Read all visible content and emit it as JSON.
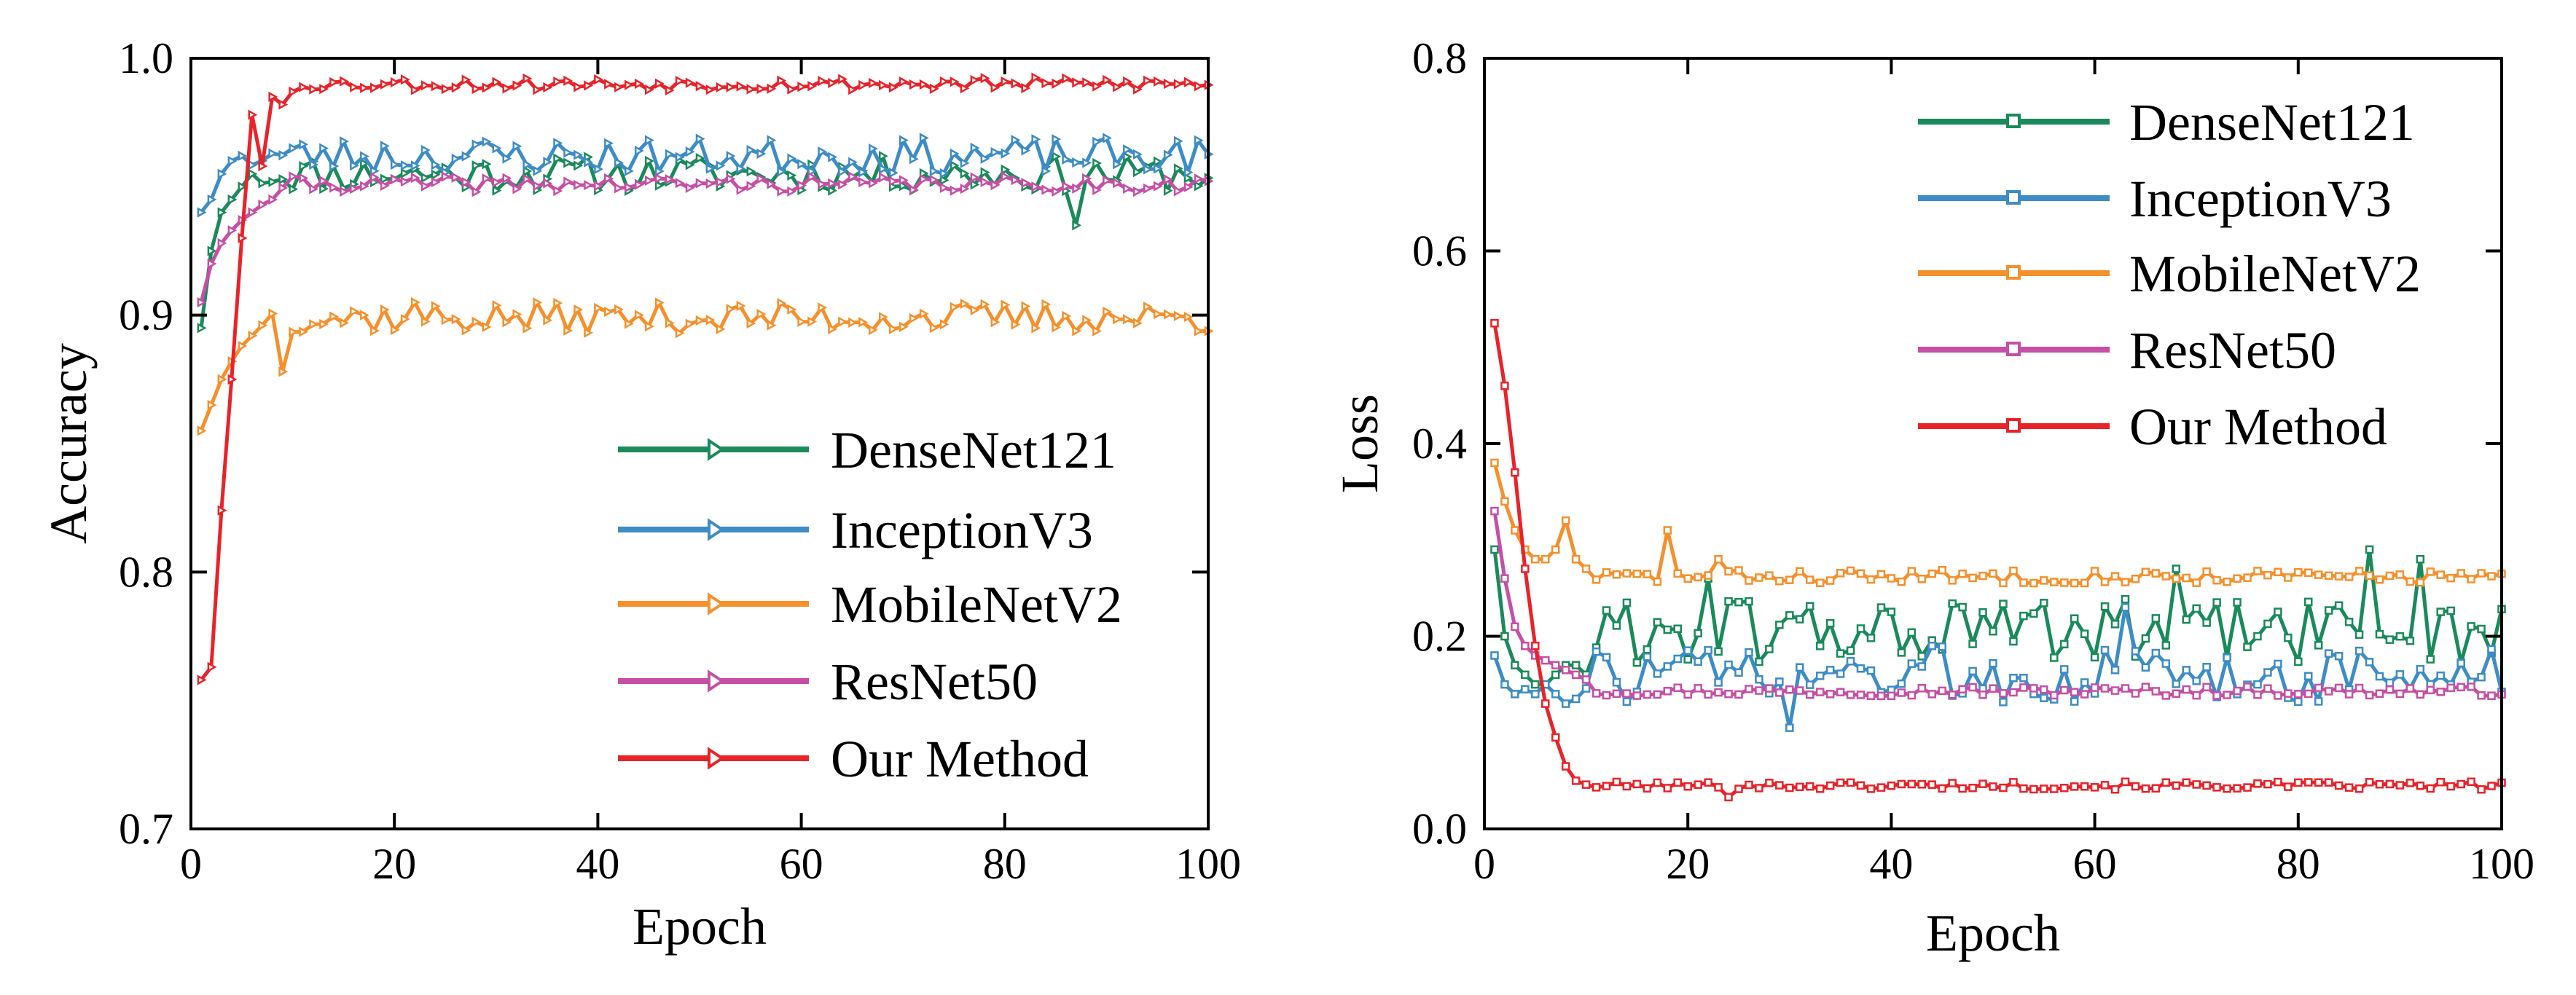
{
  "colors": {
    "DenseNet121": "#1a8a5a",
    "InceptionV3": "#3d8cc6",
    "MobileNetV2": "#f5902c",
    "ResNet50": "#c64fa6",
    "Our Method": "#e8232a"
  },
  "chart_data": [
    {
      "type": "line",
      "name": "accuracy-chart",
      "xlabel": "Epoch",
      "ylabel": "Accuracy",
      "xlim": [
        0,
        100
      ],
      "ylim": [
        0.7,
        1.0
      ],
      "xticks": [
        0,
        20,
        40,
        60,
        80,
        100
      ],
      "yticks": [
        0.7,
        0.8,
        0.9,
        1.0
      ],
      "xtick_labels": [
        "0",
        "20",
        "40",
        "60",
        "80",
        "100"
      ],
      "ytick_labels": [
        "0.7",
        "0.8",
        "0.9",
        "1.0"
      ],
      "legend_position": "bottom-right",
      "series": [
        {
          "name": "DenseNet121",
          "start": 0.895,
          "early": [
            0.925,
            0.94,
            0.945,
            0.95,
            0.955
          ],
          "plateau": 0.955,
          "amplitude": 0.007,
          "seed": 11,
          "dips": [
            [
              87,
              0.935
            ]
          ]
        },
        {
          "name": "InceptionV3",
          "start": 0.94,
          "early": [
            0.945,
            0.955,
            0.96,
            0.962
          ],
          "plateau": 0.962,
          "amplitude": 0.007,
          "seed": 23,
          "dips": []
        },
        {
          "name": "MobileNetV2",
          "start": 0.855,
          "early": [
            0.865,
            0.875,
            0.882,
            0.888,
            0.892
          ],
          "plateau": 0.899,
          "amplitude": 0.006,
          "seed": 37,
          "dips": [
            [
              9,
              0.878
            ],
            [
              22,
              0.905
            ]
          ]
        },
        {
          "name": "ResNet50",
          "start": 0.905,
          "early": [
            0.92,
            0.928,
            0.933,
            0.937,
            0.94,
            0.943,
            0.945
          ],
          "plateau": 0.951,
          "amplitude": 0.003,
          "seed": 41,
          "dips": []
        },
        {
          "name": "Our Method",
          "start": 0.758,
          "early": [
            0.763,
            0.824,
            0.875,
            0.93,
            0.978,
            0.958,
            0.985,
            0.982,
            0.987
          ],
          "plateau": 0.99,
          "amplitude": 0.0025,
          "seed": 53,
          "dips": []
        }
      ]
    },
    {
      "type": "line",
      "name": "loss-chart",
      "xlabel": "Epoch",
      "ylabel": "Loss",
      "xlim": [
        0,
        100
      ],
      "ylim": [
        0.0,
        0.8
      ],
      "xticks": [
        0,
        20,
        40,
        60,
        80,
        100
      ],
      "yticks": [
        0.0,
        0.2,
        0.4,
        0.6,
        0.8
      ],
      "xtick_labels": [
        "0",
        "20",
        "40",
        "60",
        "80",
        "100"
      ],
      "ytick_labels": [
        "0.0",
        "0.2",
        "0.4",
        "0.6",
        "0.8"
      ],
      "legend_position": "top-right",
      "series": [
        {
          "name": "DenseNet121",
          "start": 0.29,
          "early": [
            0.2,
            0.17,
            0.16,
            0.15,
            0.15,
            0.16,
            0.17,
            0.17,
            0.16
          ],
          "plateau": 0.205,
          "amplitude": 0.035,
          "seed": 61,
          "dips": [
            [
              22,
              0.26
            ],
            [
              68,
              0.27
            ],
            [
              87,
              0.29
            ],
            [
              92,
              0.28
            ]
          ]
        },
        {
          "name": "InceptionV3",
          "start": 0.18,
          "early": [
            0.15,
            0.14,
            0.145,
            0.14,
            0.15,
            0.14,
            0.13,
            0.135
          ],
          "plateau": 0.16,
          "amplitude": 0.03,
          "seed": 73,
          "dips": [
            [
              30,
              0.105
            ],
            [
              63,
              0.23
            ]
          ]
        },
        {
          "name": "MobileNetV2",
          "start": 0.38,
          "early": [
            0.34,
            0.31,
            0.29,
            0.28,
            0.28,
            0.29,
            0.32,
            0.28,
            0.27
          ],
          "plateau": 0.262,
          "amplitude": 0.007,
          "seed": 83,
          "dips": [
            [
              18,
              0.31
            ],
            [
              23,
              0.28
            ]
          ]
        },
        {
          "name": "ResNet50",
          "start": 0.33,
          "early": [
            0.26,
            0.21,
            0.19,
            0.18,
            0.175,
            0.17,
            0.165,
            0.16,
            0.155
          ],
          "plateau": 0.143,
          "amplitude": 0.005,
          "seed": 97,
          "dips": []
        },
        {
          "name": "Our Method",
          "start": 0.525,
          "early": [
            0.46,
            0.37,
            0.27,
            0.19,
            0.13,
            0.095,
            0.065,
            0.05,
            0.046
          ],
          "plateau": 0.045,
          "amplitude": 0.004,
          "seed": 101,
          "dips": [
            [
              24,
              0.033
            ]
          ]
        }
      ]
    }
  ]
}
